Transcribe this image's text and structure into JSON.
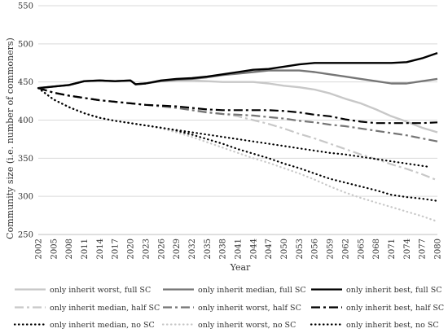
{
  "chart_data": {
    "type": "line",
    "xlabel": "Year",
    "ylabel": "Community size (i.e. number of commoners)",
    "ylim": [
      250,
      550
    ],
    "yticks": [
      250,
      300,
      350,
      400,
      450,
      500,
      550
    ],
    "xlim": [
      2002,
      2080
    ],
    "xticks": [
      2002,
      2005,
      2008,
      2011,
      2014,
      2017,
      2020,
      2023,
      2026,
      2029,
      2032,
      2035,
      2038,
      2041,
      2044,
      2047,
      2050,
      2053,
      2056,
      2059,
      2062,
      2065,
      2068,
      2071,
      2074,
      2077,
      2080
    ],
    "grid": "horizontal",
    "legend_position": "bottom",
    "series": [
      {
        "name": "only inherit worst, full SC",
        "color": "#c8c8c8",
        "style": "solid",
        "x": [
          2002,
          2005,
          2008,
          2011,
          2014,
          2017,
          2020,
          2021,
          2023,
          2026,
          2029,
          2032,
          2035,
          2038,
          2041,
          2044,
          2047,
          2050,
          2053,
          2056,
          2059,
          2062,
          2065,
          2068,
          2071,
          2074,
          2077,
          2080
        ],
        "values": [
          442,
          444,
          446,
          451,
          452,
          451,
          452,
          447,
          448,
          451,
          452,
          452,
          451,
          450,
          450,
          450,
          448,
          445,
          443,
          440,
          435,
          428,
          422,
          414,
          405,
          398,
          390,
          384
        ]
      },
      {
        "name": "only inherit median, full SC",
        "color": "#767676",
        "style": "solid",
        "x": [
          2002,
          2005,
          2008,
          2011,
          2014,
          2017,
          2020,
          2021,
          2023,
          2026,
          2029,
          2032,
          2035,
          2038,
          2041,
          2044,
          2047,
          2050,
          2053,
          2056,
          2059,
          2062,
          2065,
          2068,
          2071,
          2074,
          2077,
          2080
        ],
        "values": [
          442,
          444,
          446,
          451,
          452,
          451,
          452,
          447,
          448,
          451,
          453,
          454,
          456,
          459,
          461,
          463,
          465,
          465,
          465,
          463,
          460,
          457,
          454,
          451,
          448,
          448,
          451,
          454
        ]
      },
      {
        "name": "only inherit best, full SC",
        "color": "#000000",
        "style": "solid",
        "x": [
          2002,
          2005,
          2008,
          2011,
          2014,
          2017,
          2020,
          2021,
          2023,
          2026,
          2029,
          2032,
          2035,
          2038,
          2041,
          2044,
          2047,
          2050,
          2053,
          2056,
          2059,
          2062,
          2065,
          2068,
          2071,
          2074,
          2077,
          2080
        ],
        "values": [
          442,
          444,
          446,
          451,
          452,
          451,
          452,
          447,
          448,
          452,
          454,
          455,
          457,
          460,
          463,
          466,
          467,
          470,
          473,
          475,
          475,
          475,
          475,
          475,
          475,
          476,
          481,
          488
        ]
      },
      {
        "name": "only inherit median, half SC",
        "color": "#c8c8c8",
        "style": "dashdot",
        "x": [
          2002,
          2005,
          2008,
          2011,
          2014,
          2017,
          2020,
          2023,
          2026,
          2029,
          2032,
          2035,
          2038,
          2041,
          2044,
          2047,
          2050,
          2053,
          2056,
          2059,
          2062,
          2065,
          2068,
          2071,
          2074,
          2077,
          2080
        ],
        "values": [
          442,
          436,
          432,
          429,
          426,
          424,
          422,
          420,
          418,
          416,
          414,
          411,
          408,
          405,
          400,
          395,
          389,
          382,
          376,
          369,
          362,
          355,
          349,
          342,
          336,
          329,
          321
        ]
      },
      {
        "name": "only inherit worst, half SC",
        "color": "#767676",
        "style": "dashdot",
        "x": [
          2002,
          2005,
          2008,
          2011,
          2014,
          2017,
          2020,
          2023,
          2026,
          2029,
          2032,
          2035,
          2038,
          2041,
          2044,
          2047,
          2050,
          2053,
          2056,
          2059,
          2062,
          2065,
          2068,
          2071,
          2074,
          2077,
          2080
        ],
        "values": [
          442,
          436,
          432,
          429,
          426,
          424,
          422,
          420,
          418,
          416,
          413,
          410,
          408,
          407,
          406,
          404,
          402,
          399,
          397,
          394,
          392,
          389,
          386,
          383,
          380,
          376,
          372
        ]
      },
      {
        "name": "only inherit best, half SC",
        "color": "#000000",
        "style": "dashdot",
        "x": [
          2002,
          2005,
          2008,
          2011,
          2014,
          2017,
          2020,
          2023,
          2026,
          2029,
          2032,
          2035,
          2038,
          2041,
          2044,
          2047,
          2050,
          2053,
          2056,
          2059,
          2062,
          2065,
          2068,
          2071,
          2074,
          2077,
          2080
        ],
        "values": [
          442,
          436,
          432,
          429,
          426,
          424,
          422,
          420,
          419,
          418,
          416,
          414,
          413,
          413,
          413,
          413,
          412,
          410,
          407,
          405,
          401,
          398,
          396,
          396,
          396,
          396,
          397
        ]
      },
      {
        "name": "only inherit median, no SC",
        "color": "#000000",
        "style": "dotted",
        "x": [
          2002,
          2005,
          2008,
          2011,
          2014,
          2017,
          2020,
          2023,
          2026,
          2029,
          2032,
          2035,
          2038,
          2041,
          2044,
          2047,
          2050,
          2053,
          2056,
          2059,
          2062,
          2065,
          2068,
          2071,
          2074,
          2077,
          2080
        ],
        "values": [
          442,
          427,
          417,
          409,
          403,
          399,
          396,
          393,
          390,
          386,
          381,
          375,
          369,
          362,
          356,
          350,
          343,
          337,
          330,
          323,
          318,
          313,
          308,
          302,
          299,
          297,
          294
        ]
      },
      {
        "name": "only inherit worst, no SC",
        "color": "#c8c8c8",
        "style": "dotted",
        "x": [
          2002,
          2005,
          2008,
          2011,
          2014,
          2017,
          2020,
          2023,
          2026,
          2029,
          2032,
          2035,
          2038,
          2041,
          2044,
          2047,
          2050,
          2053,
          2056,
          2059,
          2062,
          2065,
          2068,
          2071,
          2074,
          2077,
          2080
        ],
        "values": [
          442,
          427,
          417,
          409,
          403,
          399,
          396,
          393,
          389,
          384,
          378,
          371,
          364,
          357,
          350,
          344,
          337,
          330,
          322,
          313,
          305,
          298,
          292,
          286,
          280,
          274,
          267
        ]
      },
      {
        "name": "only inherit best, no SC",
        "color": "#000000",
        "style": "dotted",
        "x": [
          2002,
          2005,
          2008,
          2011,
          2014,
          2017,
          2020,
          2023,
          2026,
          2029,
          2032,
          2035,
          2038,
          2041,
          2044,
          2047,
          2050,
          2053,
          2056,
          2059,
          2062,
          2065,
          2068,
          2071,
          2074,
          2077,
          2078
        ],
        "values": [
          442,
          427,
          417,
          409,
          403,
          399,
          396,
          393,
          390,
          387,
          384,
          381,
          378,
          375,
          372,
          369,
          366,
          363,
          360,
          357,
          355,
          352,
          349,
          346,
          343,
          340,
          339
        ]
      }
    ]
  }
}
